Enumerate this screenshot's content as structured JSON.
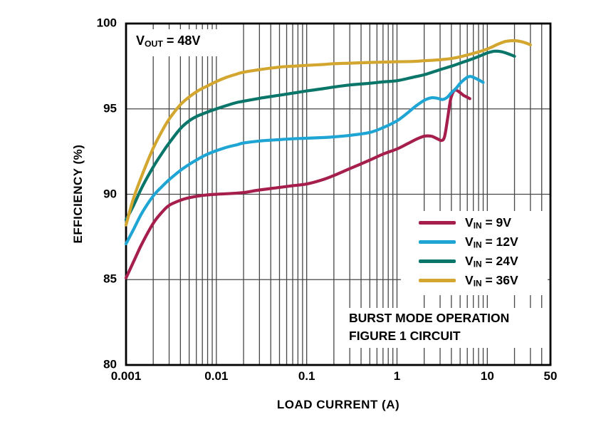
{
  "chart_data": {
    "type": "line",
    "x_scale": "log",
    "xlim": [
      0.001,
      50
    ],
    "ylim": [
      80,
      100
    ],
    "xlabel": "LOAD CURRENT (A)",
    "ylabel": "EFFICIENCY (%)",
    "grid_color": "#474747",
    "frame_color": "#000000",
    "grid_y": [
      85,
      90,
      95
    ],
    "x_ticks": [
      {
        "value": 0.001,
        "label": "0.001"
      },
      {
        "value": 0.01,
        "label": "0.01"
      },
      {
        "value": 0.1,
        "label": "0.1"
      },
      {
        "value": 1,
        "label": "1"
      },
      {
        "value": 10,
        "label": "10"
      },
      {
        "value": 50,
        "label": "50"
      }
    ],
    "y_ticks": [
      {
        "value": 100,
        "label": "100"
      },
      {
        "value": 95,
        "label": "95"
      },
      {
        "value": 90,
        "label": "90"
      },
      {
        "value": 85,
        "label": "85"
      },
      {
        "value": 80,
        "label": "80"
      }
    ],
    "annotation": {
      "text": "VOUT = 48V",
      "prefix": "V",
      "sub": "OUT",
      "suffix": " = 48V"
    },
    "notes": {
      "line1": "BURST MODE OPERATION",
      "line2": "FIGURE 1 CIRCUIT"
    },
    "legend_position": "lower right",
    "series": [
      {
        "name": "VIN = 9V",
        "label_prefix": "V",
        "label_sub": "IN",
        "label_suffix": " = 9V",
        "color": "#A51E4D",
        "points": [
          [
            0.001,
            85.1
          ],
          [
            0.0012,
            86.0
          ],
          [
            0.0015,
            87.1
          ],
          [
            0.002,
            88.3
          ],
          [
            0.0025,
            88.95
          ],
          [
            0.003,
            89.35
          ],
          [
            0.004,
            89.65
          ],
          [
            0.005,
            89.8
          ],
          [
            0.007,
            89.93
          ],
          [
            0.01,
            90.0
          ],
          [
            0.015,
            90.05
          ],
          [
            0.02,
            90.1
          ],
          [
            0.03,
            90.25
          ],
          [
            0.05,
            90.4
          ],
          [
            0.07,
            90.5
          ],
          [
            0.1,
            90.6
          ],
          [
            0.15,
            90.85
          ],
          [
            0.2,
            91.1
          ],
          [
            0.3,
            91.5
          ],
          [
            0.5,
            92.0
          ],
          [
            0.7,
            92.35
          ],
          [
            1,
            92.65
          ],
          [
            1.3,
            92.95
          ],
          [
            1.6,
            93.2
          ],
          [
            2,
            93.4
          ],
          [
            2.4,
            93.4
          ],
          [
            2.8,
            93.25
          ],
          [
            3.1,
            93.15
          ],
          [
            3.35,
            93.35
          ],
          [
            3.6,
            94.3
          ],
          [
            3.9,
            95.5
          ],
          [
            4.2,
            96.0
          ],
          [
            4.5,
            96.1
          ],
          [
            5,
            95.95
          ],
          [
            5.5,
            95.78
          ],
          [
            6,
            95.68
          ],
          [
            6.4,
            95.6
          ]
        ]
      },
      {
        "name": "VIN = 12V",
        "label_prefix": "V",
        "label_sub": "IN",
        "label_suffix": " = 12V",
        "color": "#1FA5D4",
        "points": [
          [
            0.001,
            87.1
          ],
          [
            0.0012,
            87.9
          ],
          [
            0.0015,
            88.9
          ],
          [
            0.002,
            89.9
          ],
          [
            0.0025,
            90.45
          ],
          [
            0.003,
            90.85
          ],
          [
            0.004,
            91.4
          ],
          [
            0.005,
            91.75
          ],
          [
            0.006,
            92.0
          ],
          [
            0.007,
            92.2
          ],
          [
            0.008,
            92.35
          ],
          [
            0.01,
            92.55
          ],
          [
            0.013,
            92.75
          ],
          [
            0.017,
            92.9
          ],
          [
            0.02,
            93.0
          ],
          [
            0.03,
            93.12
          ],
          [
            0.05,
            93.2
          ],
          [
            0.07,
            93.25
          ],
          [
            0.1,
            93.28
          ],
          [
            0.15,
            93.32
          ],
          [
            0.2,
            93.36
          ],
          [
            0.3,
            93.45
          ],
          [
            0.5,
            93.62
          ],
          [
            0.7,
            93.9
          ],
          [
            1,
            94.3
          ],
          [
            1.3,
            94.75
          ],
          [
            1.6,
            95.15
          ],
          [
            2,
            95.5
          ],
          [
            2.4,
            95.65
          ],
          [
            2.8,
            95.62
          ],
          [
            3.2,
            95.55
          ],
          [
            3.6,
            95.68
          ],
          [
            4,
            95.95
          ],
          [
            4.5,
            96.2
          ],
          [
            5,
            96.5
          ],
          [
            5.5,
            96.7
          ],
          [
            6,
            96.85
          ],
          [
            6.5,
            96.9
          ],
          [
            7,
            96.85
          ],
          [
            8,
            96.7
          ],
          [
            9,
            96.55
          ]
        ]
      },
      {
        "name": "VIN = 24V",
        "label_prefix": "V",
        "label_sub": "IN",
        "label_suffix": " = 24V",
        "color": "#0A7569",
        "points": [
          [
            0.001,
            88.5
          ],
          [
            0.0012,
            89.3
          ],
          [
            0.0015,
            90.4
          ],
          [
            0.002,
            91.6
          ],
          [
            0.0025,
            92.4
          ],
          [
            0.003,
            93.0
          ],
          [
            0.004,
            93.85
          ],
          [
            0.005,
            94.3
          ],
          [
            0.006,
            94.55
          ],
          [
            0.007,
            94.7
          ],
          [
            0.008,
            94.82
          ],
          [
            0.01,
            95.0
          ],
          [
            0.013,
            95.2
          ],
          [
            0.017,
            95.38
          ],
          [
            0.02,
            95.45
          ],
          [
            0.03,
            95.62
          ],
          [
            0.05,
            95.8
          ],
          [
            0.07,
            95.92
          ],
          [
            0.1,
            96.05
          ],
          [
            0.15,
            96.18
          ],
          [
            0.2,
            96.28
          ],
          [
            0.3,
            96.4
          ],
          [
            0.5,
            96.5
          ],
          [
            0.7,
            96.58
          ],
          [
            1,
            96.65
          ],
          [
            1.5,
            96.85
          ],
          [
            2,
            97.0
          ],
          [
            3,
            97.3
          ],
          [
            4,
            97.5
          ],
          [
            5,
            97.68
          ],
          [
            7,
            97.95
          ],
          [
            9,
            98.18
          ],
          [
            10,
            98.28
          ],
          [
            12,
            98.38
          ],
          [
            14,
            98.36
          ],
          [
            16,
            98.28
          ],
          [
            18,
            98.18
          ],
          [
            20,
            98.08
          ]
        ]
      },
      {
        "name": "VIN = 36V",
        "label_prefix": "V",
        "label_sub": "IN",
        "label_suffix": " = 36V",
        "color": "#D2A62F",
        "points": [
          [
            0.001,
            88.2
          ],
          [
            0.0012,
            89.7
          ],
          [
            0.0015,
            91.1
          ],
          [
            0.002,
            92.7
          ],
          [
            0.0025,
            93.7
          ],
          [
            0.003,
            94.4
          ],
          [
            0.004,
            95.25
          ],
          [
            0.005,
            95.7
          ],
          [
            0.006,
            96.0
          ],
          [
            0.007,
            96.2
          ],
          [
            0.008,
            96.35
          ],
          [
            0.01,
            96.6
          ],
          [
            0.013,
            96.85
          ],
          [
            0.017,
            97.05
          ],
          [
            0.02,
            97.15
          ],
          [
            0.03,
            97.3
          ],
          [
            0.05,
            97.45
          ],
          [
            0.07,
            97.5
          ],
          [
            0.1,
            97.55
          ],
          [
            0.15,
            97.6
          ],
          [
            0.2,
            97.65
          ],
          [
            0.3,
            97.68
          ],
          [
            0.5,
            97.72
          ],
          [
            0.7,
            97.74
          ],
          [
            1,
            97.76
          ],
          [
            1.5,
            97.78
          ],
          [
            2,
            97.82
          ],
          [
            3,
            97.88
          ],
          [
            4,
            97.95
          ],
          [
            5,
            98.05
          ],
          [
            7,
            98.25
          ],
          [
            9,
            98.42
          ],
          [
            11,
            98.6
          ],
          [
            13,
            98.78
          ],
          [
            16,
            98.95
          ],
          [
            20,
            99.0
          ],
          [
            24,
            98.93
          ],
          [
            28,
            98.82
          ],
          [
            30,
            98.75
          ]
        ]
      }
    ]
  }
}
